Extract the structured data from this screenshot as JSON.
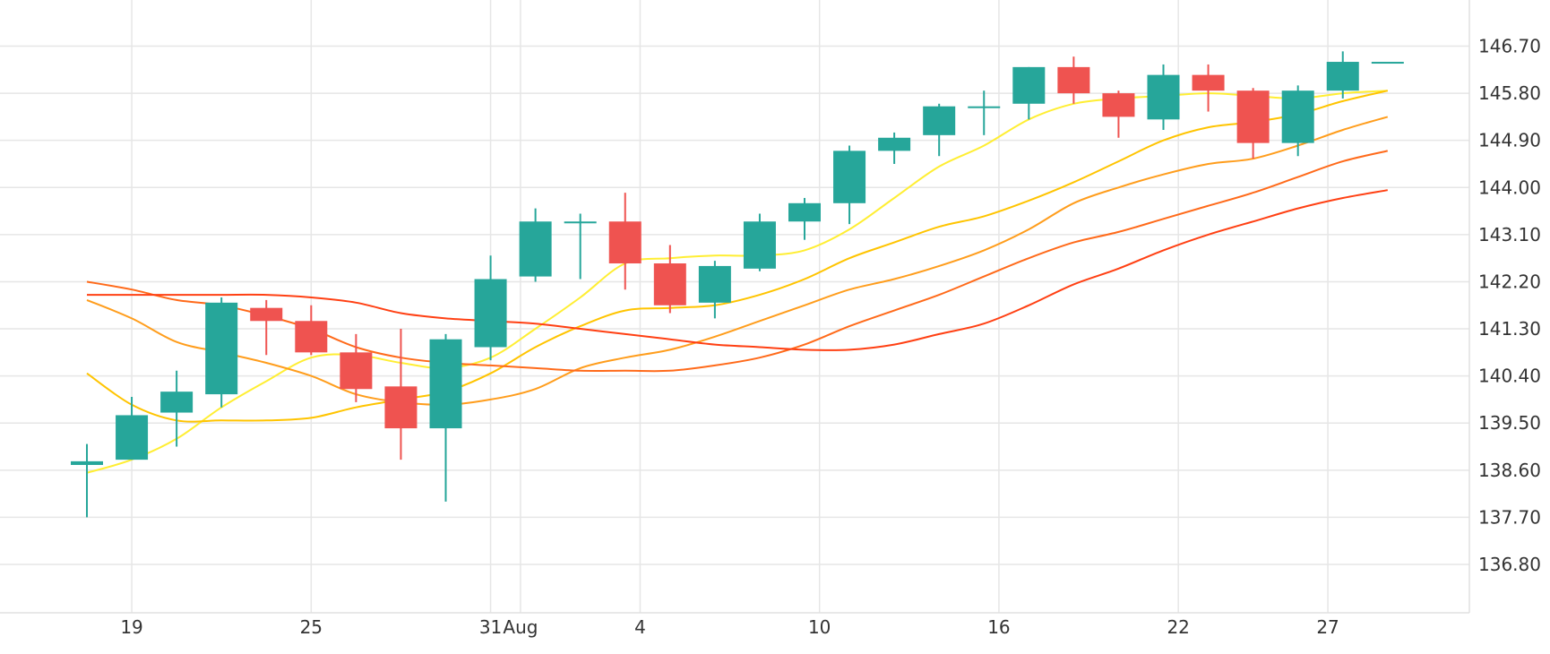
{
  "chart_data": {
    "type": "candlestick",
    "title": "",
    "xlabel": "",
    "ylabel": "",
    "ylim": [
      135.9,
      147.6
    ],
    "y_ticks": [
      "146.70",
      "145.80",
      "144.90",
      "144.00",
      "143.10",
      "142.20",
      "141.30",
      "140.40",
      "139.50",
      "138.60",
      "137.70",
      "136.80"
    ],
    "x_ticks": [
      {
        "label": "19",
        "d": 2
      },
      {
        "label": "25",
        "d": 8
      },
      {
        "label": "31",
        "d": 14
      },
      {
        "label": "Aug",
        "d": 15
      },
      {
        "label": "4",
        "d": 19
      },
      {
        "label": "10",
        "d": 25
      },
      {
        "label": "16",
        "d": 31
      },
      {
        "label": "22",
        "d": 37
      },
      {
        "label": "27",
        "d": 42
      }
    ],
    "candles": [
      {
        "d": 0.5,
        "o": 138.7,
        "h": 139.1,
        "l": 137.7,
        "c": 138.77
      },
      {
        "d": 2,
        "o": 138.8,
        "h": 140.0,
        "l": 138.8,
        "c": 139.65
      },
      {
        "d": 3.5,
        "o": 139.7,
        "h": 140.5,
        "l": 139.05,
        "c": 140.1
      },
      {
        "d": 5,
        "o": 140.05,
        "h": 141.9,
        "l": 139.8,
        "c": 141.8
      },
      {
        "d": 6.5,
        "o": 141.7,
        "h": 141.85,
        "l": 140.8,
        "c": 141.45
      },
      {
        "d": 8,
        "o": 141.45,
        "h": 141.75,
        "l": 140.8,
        "c": 140.85
      },
      {
        "d": 9.5,
        "o": 140.85,
        "h": 141.2,
        "l": 139.9,
        "c": 140.15
      },
      {
        "d": 11,
        "o": 140.2,
        "h": 141.3,
        "l": 138.8,
        "c": 139.4
      },
      {
        "d": 12.5,
        "o": 139.4,
        "h": 141.2,
        "l": 138.0,
        "c": 141.1
      },
      {
        "d": 14,
        "o": 140.95,
        "h": 142.7,
        "l": 140.7,
        "c": 142.25
      },
      {
        "d": 15.5,
        "o": 142.3,
        "h": 143.6,
        "l": 142.2,
        "c": 143.35
      },
      {
        "d": 17,
        "o": 143.35,
        "h": 143.5,
        "l": 142.25,
        "c": 143.35
      },
      {
        "d": 18.5,
        "o": 143.35,
        "h": 143.9,
        "l": 142.05,
        "c": 142.55
      },
      {
        "d": 20,
        "o": 142.55,
        "h": 142.9,
        "l": 141.6,
        "c": 141.75
      },
      {
        "d": 21.5,
        "o": 141.8,
        "h": 142.6,
        "l": 141.5,
        "c": 142.5
      },
      {
        "d": 23,
        "o": 142.45,
        "h": 143.5,
        "l": 142.4,
        "c": 143.35
      },
      {
        "d": 24.5,
        "o": 143.35,
        "h": 143.8,
        "l": 143.0,
        "c": 143.7
      },
      {
        "d": 26,
        "o": 143.7,
        "h": 144.8,
        "l": 143.3,
        "c": 144.7
      },
      {
        "d": 27.5,
        "o": 144.7,
        "h": 145.05,
        "l": 144.45,
        "c": 144.95
      },
      {
        "d": 29,
        "o": 145.0,
        "h": 145.6,
        "l": 144.6,
        "c": 145.55
      },
      {
        "d": 30.5,
        "o": 145.55,
        "h": 145.85,
        "l": 145.0,
        "c": 145.55
      },
      {
        "d": 32,
        "o": 145.6,
        "h": 146.3,
        "l": 145.3,
        "c": 146.3
      },
      {
        "d": 33.5,
        "o": 146.3,
        "h": 146.5,
        "l": 145.6,
        "c": 145.8
      },
      {
        "d": 35,
        "o": 145.8,
        "h": 145.85,
        "l": 144.95,
        "c": 145.35
      },
      {
        "d": 36.5,
        "o": 145.3,
        "h": 146.35,
        "l": 145.1,
        "c": 146.15
      },
      {
        "d": 38,
        "o": 146.15,
        "h": 146.35,
        "l": 145.45,
        "c": 145.85
      },
      {
        "d": 39.5,
        "o": 145.85,
        "h": 145.9,
        "l": 144.55,
        "c": 144.85
      },
      {
        "d": 41,
        "o": 144.85,
        "h": 145.95,
        "l": 144.6,
        "c": 145.85
      },
      {
        "d": 42.5,
        "o": 145.85,
        "h": 146.6,
        "l": 145.7,
        "c": 146.4
      },
      {
        "d": 44,
        "o": 146.4,
        "h": 146.4,
        "l": 146.4,
        "c": 146.4
      }
    ],
    "moving_averages": [
      {
        "color": "#ffee33",
        "points": [
          [
            0.5,
            138.55
          ],
          [
            2,
            138.8
          ],
          [
            3.5,
            139.2
          ],
          [
            5,
            139.8
          ],
          [
            6.5,
            140.3
          ],
          [
            8,
            140.75
          ],
          [
            9.5,
            140.8
          ],
          [
            11,
            140.65
          ],
          [
            12.5,
            140.55
          ],
          [
            14,
            140.75
          ],
          [
            15.5,
            141.3
          ],
          [
            17,
            141.9
          ],
          [
            18.5,
            142.55
          ],
          [
            20,
            142.65
          ],
          [
            21.5,
            142.7
          ],
          [
            23,
            142.7
          ],
          [
            24.5,
            142.8
          ],
          [
            26,
            143.2
          ],
          [
            27.5,
            143.8
          ],
          [
            29,
            144.4
          ],
          [
            30.5,
            144.8
          ],
          [
            32,
            145.3
          ],
          [
            33.5,
            145.6
          ],
          [
            35,
            145.7
          ],
          [
            36.5,
            145.75
          ],
          [
            38,
            145.8
          ],
          [
            39.5,
            145.75
          ],
          [
            41,
            145.7
          ],
          [
            42.5,
            145.8
          ],
          [
            44,
            145.85
          ]
        ]
      },
      {
        "color": "#ffc400",
        "points": [
          [
            0.5,
            140.45
          ],
          [
            2,
            139.85
          ],
          [
            3.5,
            139.55
          ],
          [
            5,
            139.55
          ],
          [
            6.5,
            139.55
          ],
          [
            8,
            139.6
          ],
          [
            9.5,
            139.8
          ],
          [
            11,
            139.95
          ],
          [
            12.5,
            140.1
          ],
          [
            14,
            140.45
          ],
          [
            15.5,
            140.95
          ],
          [
            17,
            141.35
          ],
          [
            18.5,
            141.65
          ],
          [
            20,
            141.7
          ],
          [
            21.5,
            141.75
          ],
          [
            23,
            141.95
          ],
          [
            24.5,
            142.25
          ],
          [
            26,
            142.65
          ],
          [
            27.5,
            142.95
          ],
          [
            29,
            143.25
          ],
          [
            30.5,
            143.45
          ],
          [
            32,
            143.75
          ],
          [
            33.5,
            144.1
          ],
          [
            35,
            144.5
          ],
          [
            36.5,
            144.9
          ],
          [
            38,
            145.15
          ],
          [
            39.5,
            145.25
          ],
          [
            41,
            145.4
          ],
          [
            42.5,
            145.65
          ],
          [
            44,
            145.85
          ]
        ]
      },
      {
        "color": "#ff9d1c",
        "points": [
          [
            0.5,
            141.85
          ],
          [
            2,
            141.5
          ],
          [
            3.5,
            141.05
          ],
          [
            5,
            140.85
          ],
          [
            6.5,
            140.65
          ],
          [
            8,
            140.4
          ],
          [
            9.5,
            140.05
          ],
          [
            11,
            139.9
          ],
          [
            12.5,
            139.85
          ],
          [
            14,
            139.95
          ],
          [
            15.5,
            140.15
          ],
          [
            17,
            140.55
          ],
          [
            18.5,
            140.75
          ],
          [
            20,
            140.9
          ],
          [
            21.5,
            141.15
          ],
          [
            23,
            141.45
          ],
          [
            24.5,
            141.75
          ],
          [
            26,
            142.05
          ],
          [
            27.5,
            142.25
          ],
          [
            29,
            142.5
          ],
          [
            30.5,
            142.8
          ],
          [
            32,
            143.2
          ],
          [
            33.5,
            143.7
          ],
          [
            35,
            144.0
          ],
          [
            36.5,
            144.25
          ],
          [
            38,
            144.45
          ],
          [
            39.5,
            144.55
          ],
          [
            41,
            144.8
          ],
          [
            42.5,
            145.1
          ],
          [
            44,
            145.35
          ]
        ]
      },
      {
        "color": "#ff6a1a",
        "points": [
          [
            0.5,
            142.2
          ],
          [
            2,
            142.05
          ],
          [
            3.5,
            141.85
          ],
          [
            5,
            141.75
          ],
          [
            6.5,
            141.55
          ],
          [
            8,
            141.3
          ],
          [
            9.5,
            140.95
          ],
          [
            11,
            140.75
          ],
          [
            12.5,
            140.65
          ],
          [
            14,
            140.6
          ],
          [
            15.5,
            140.55
          ],
          [
            17,
            140.5
          ],
          [
            18.5,
            140.5
          ],
          [
            20,
            140.5
          ],
          [
            21.5,
            140.6
          ],
          [
            23,
            140.75
          ],
          [
            24.5,
            141.0
          ],
          [
            26,
            141.35
          ],
          [
            27.5,
            141.65
          ],
          [
            29,
            141.95
          ],
          [
            30.5,
            142.3
          ],
          [
            32,
            142.65
          ],
          [
            33.5,
            142.95
          ],
          [
            35,
            143.15
          ],
          [
            36.5,
            143.4
          ],
          [
            38,
            143.65
          ],
          [
            39.5,
            143.9
          ],
          [
            41,
            144.2
          ],
          [
            42.5,
            144.5
          ],
          [
            44,
            144.7
          ]
        ]
      },
      {
        "color": "#ff4013",
        "points": [
          [
            0.5,
            141.95
          ],
          [
            2,
            141.95
          ],
          [
            3.5,
            141.95
          ],
          [
            5,
            141.95
          ],
          [
            6.5,
            141.95
          ],
          [
            8,
            141.9
          ],
          [
            9.5,
            141.8
          ],
          [
            11,
            141.6
          ],
          [
            12.5,
            141.5
          ],
          [
            14,
            141.45
          ],
          [
            15.5,
            141.4
          ],
          [
            17,
            141.3
          ],
          [
            18.5,
            141.2
          ],
          [
            20,
            141.1
          ],
          [
            21.5,
            141.0
          ],
          [
            23,
            140.95
          ],
          [
            24.5,
            140.9
          ],
          [
            26,
            140.9
          ],
          [
            27.5,
            141.0
          ],
          [
            29,
            141.2
          ],
          [
            30.5,
            141.4
          ],
          [
            32,
            141.75
          ],
          [
            33.5,
            142.15
          ],
          [
            35,
            142.45
          ],
          [
            36.5,
            142.8
          ],
          [
            38,
            143.1
          ],
          [
            39.5,
            143.35
          ],
          [
            41,
            143.6
          ],
          [
            42.5,
            143.8
          ],
          [
            44,
            143.95
          ]
        ]
      }
    ],
    "up_color": "#26a69a",
    "down_color": "#ef5350",
    "grid": true,
    "legend": false
  }
}
